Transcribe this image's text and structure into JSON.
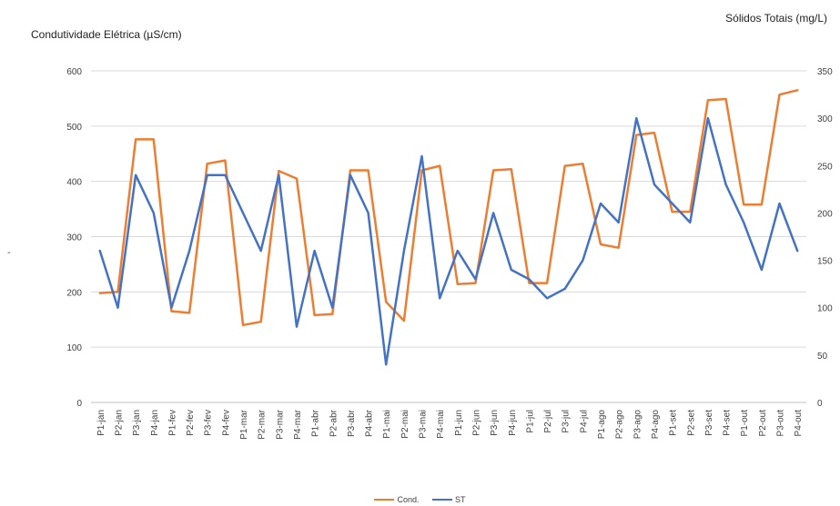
{
  "chart_data": {
    "type": "line",
    "ylabel": "Condutividade Elétrica (µS/cm)",
    "y2label": "Sólidos Totais (mg/L)",
    "stray_mark": "-",
    "ylim": [
      0,
      600
    ],
    "y2lim": [
      0,
      350
    ],
    "yticks": [
      0,
      100,
      200,
      300,
      400,
      500,
      600
    ],
    "y2ticks": [
      0,
      50,
      100,
      150,
      200,
      250,
      300,
      350
    ],
    "grid": true,
    "legend_position": "bottom",
    "categories": [
      "P1-jan",
      "P2-jan",
      "P3-jan",
      "P4-jan",
      "P1-fev",
      "P2-fev",
      "P3-fev",
      "P4-fev",
      "P1-mar",
      "P2-mar",
      "P3-mar",
      "P4-mar",
      "P1-abr",
      "P2-abr",
      "P3-abr",
      "P4-abr",
      "P1-mai",
      "P2-mai",
      "P3-mai",
      "P4-mai",
      "P1-jun",
      "P2-jun",
      "P3-jun",
      "P4-jun",
      "P1-jul",
      "P2-jul",
      "P3-jul",
      "P4-jul",
      "P1-ago",
      "P2-ago",
      "P3-ago",
      "P4-ago",
      "P1-set",
      "P2-set",
      "P3-set",
      "P4-set",
      "P1-out",
      "P2-out",
      "P3-out",
      "P4-out"
    ],
    "series": [
      {
        "name": "Cond.",
        "axis": "left",
        "color": "#ED7D31",
        "values": [
          198,
          200,
          476,
          476,
          165,
          162,
          432,
          438,
          140,
          146,
          419,
          405,
          158,
          160,
          420,
          420,
          182,
          148,
          420,
          428,
          214,
          216,
          420,
          422,
          216,
          216,
          428,
          432,
          286,
          280,
          484,
          488,
          345,
          345,
          547,
          549,
          358,
          358,
          557,
          565
        ]
      },
      {
        "name": "ST",
        "axis": "right",
        "color": "#4472C4",
        "values": [
          160,
          100,
          240,
          200,
          100,
          160,
          240,
          240,
          200,
          160,
          240,
          80,
          160,
          100,
          240,
          200,
          40,
          160,
          260,
          110,
          160,
          130,
          200,
          140,
          130,
          110,
          120,
          150,
          210,
          190,
          300,
          230,
          210,
          190,
          300,
          230,
          190,
          140,
          210,
          160
        ]
      }
    ]
  }
}
